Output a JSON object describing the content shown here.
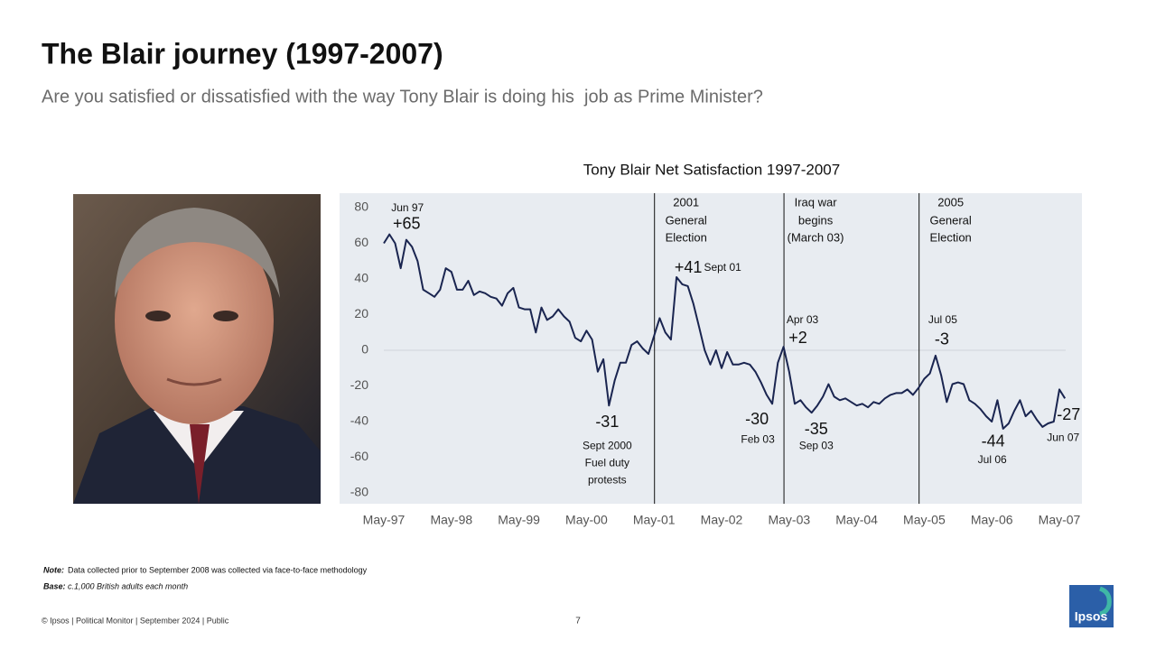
{
  "slide": {
    "title": "The Blair journey (1997-2007)",
    "subtitle": "Are you satisfied or dissatisfied with the way Tony Blair is doing his  job as Prime Minister?",
    "note_label": "Note:",
    "note": "Data collected prior to September 2008 was collected via face-to-face methodology",
    "base_label": "Base:",
    "base": "c.1,000 British adults each month",
    "footer": "© Ipsos | Political Monitor | September 2024 | Public",
    "page": "7",
    "logo": "Ipsos"
  },
  "chart_data": {
    "type": "line",
    "title": "Tony Blair Net Satisfaction 1997-2007",
    "categories": [
      "May-97",
      null,
      null,
      null,
      null,
      null,
      null,
      null,
      null,
      null,
      null,
      null,
      "May-98",
      null,
      null,
      null,
      null,
      null,
      null,
      null,
      null,
      null,
      null,
      null,
      "May-99",
      null,
      null,
      null,
      null,
      null,
      null,
      null,
      null,
      null,
      null,
      null,
      "May-00",
      null,
      null,
      null,
      null,
      null,
      null,
      null,
      null,
      null,
      null,
      null,
      "May-01",
      null,
      null,
      null,
      null,
      null,
      null,
      null,
      null,
      null,
      null,
      null,
      "May-02",
      null,
      null,
      null,
      null,
      null,
      null,
      null,
      null,
      null,
      null,
      null,
      "May-03",
      null,
      null,
      null,
      null,
      null,
      null,
      null,
      null,
      null,
      null,
      null,
      "May-04",
      null,
      null,
      null,
      null,
      null,
      null,
      null,
      null,
      null,
      null,
      null,
      "May-05",
      null,
      null,
      null,
      null,
      null,
      null,
      null,
      null,
      null,
      null,
      null,
      "May-06",
      null,
      null,
      null,
      null,
      null,
      null,
      null,
      null,
      null,
      null,
      null,
      "May-07",
      null
    ],
    "series": [
      {
        "name": "Net satisfaction",
        "color": "#1a2550",
        "values": [
          60,
          65,
          60,
          46,
          62,
          58,
          50,
          34,
          32,
          30,
          34,
          46,
          44,
          34,
          34,
          39,
          31,
          33,
          32,
          30,
          29,
          25,
          32,
          35,
          24,
          23,
          23,
          10,
          24,
          17,
          19,
          23,
          19,
          16,
          7,
          5,
          11,
          6,
          -12,
          -5,
          -31,
          -17,
          -7,
          -7,
          3,
          5,
          1,
          -2,
          8,
          18,
          10,
          6,
          41,
          37,
          36,
          26,
          13,
          0,
          -8,
          0,
          -10,
          -1,
          -8,
          -8,
          -7,
          -8,
          -12,
          -18,
          -25,
          -30,
          -7,
          2,
          -12,
          -30,
          -28,
          -32,
          -35,
          -31,
          -26,
          -19,
          -26,
          -28,
          -27,
          -29,
          -31,
          -30,
          -32,
          -29,
          -30,
          -27,
          -25,
          -24,
          -24,
          -22,
          -25,
          -21,
          -16,
          -13,
          -3,
          -14,
          -29,
          -19,
          -18,
          -19,
          -28,
          -30,
          -33,
          -37,
          -40,
          -28,
          -44,
          -41,
          -34,
          -28,
          -37,
          -34,
          -39,
          -43,
          -41,
          -40,
          -22,
          -27
        ]
      }
    ],
    "value_labels": {
      "1": "+65",
      "40": "-31",
      "52": "+41",
      "69": "-30",
      "71": "+2",
      "76": "-35",
      "98": "-3",
      "110": "-44",
      "121": "-27"
    },
    "point_notes": {
      "1": [
        "Jun 97"
      ],
      "40": [
        "Sept 2000",
        "Fuel duty",
        "protests"
      ],
      "52": [
        "Sept 01"
      ],
      "69": [
        "Feb 03"
      ],
      "71": [
        "Apr 03"
      ],
      "76": [
        "Sep 03"
      ],
      "98": [
        "Jul 05"
      ],
      "110": [
        "Jul 06"
      ],
      "121": [
        "Jun 07"
      ]
    },
    "events": {
      "48": [
        "2001",
        "General",
        "Election"
      ],
      "71": [
        "Iraq war",
        "begins",
        "(March 03)"
      ],
      "95": [
        "2005",
        "General",
        "Election"
      ]
    },
    "ylim": [
      -80,
      80
    ],
    "yticks": [
      80,
      60,
      40,
      20,
      0,
      -20,
      -40,
      -60,
      -80
    ],
    "zero_line": true
  }
}
